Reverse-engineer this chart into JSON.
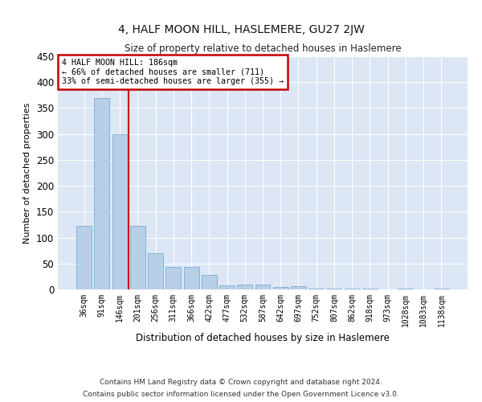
{
  "title": "4, HALF MOON HILL, HASLEMERE, GU27 2JW",
  "subtitle": "Size of property relative to detached houses in Haslemere",
  "xlabel": "Distribution of detached houses by size in Haslemere",
  "ylabel": "Number of detached properties",
  "bar_color": "#b8cfe8",
  "bar_edge_color": "#7aadd4",
  "background_color": "#dce6f5",
  "grid_color": "#ffffff",
  "categories": [
    "36sqm",
    "91sqm",
    "146sqm",
    "201sqm",
    "256sqm",
    "311sqm",
    "366sqm",
    "422sqm",
    "477sqm",
    "532sqm",
    "587sqm",
    "642sqm",
    "697sqm",
    "752sqm",
    "807sqm",
    "862sqm",
    "918sqm",
    "973sqm",
    "1028sqm",
    "1083sqm",
    "1138sqm"
  ],
  "values": [
    123,
    370,
    300,
    122,
    70,
    43,
    43,
    28,
    7,
    10,
    10,
    4,
    6,
    2,
    1,
    1,
    1,
    0,
    1,
    0,
    1
  ],
  "ylim": [
    0,
    450
  ],
  "yticks": [
    0,
    50,
    100,
    150,
    200,
    250,
    300,
    350,
    400,
    450
  ],
  "annotation_title": "4 HALF MOON HILL: 186sqm",
  "annotation_line1": "← 66% of detached houses are smaller (711)",
  "annotation_line2": "33% of semi-detached houses are larger (355) →",
  "annotation_box_color": "#ffffff",
  "annotation_box_edge_color": "#cc0000",
  "property_line_color": "#cc0000",
  "footnote1": "Contains HM Land Registry data © Crown copyright and database right 2024.",
  "footnote2": "Contains public sector information licensed under the Open Government Licence v3.0."
}
